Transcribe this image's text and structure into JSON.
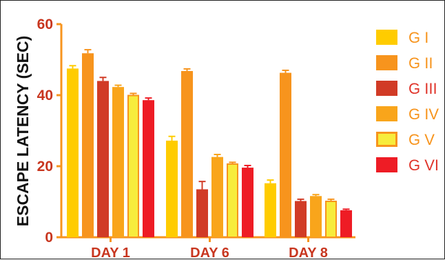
{
  "chart_data": {
    "type": "bar",
    "title": "",
    "xlabel": "",
    "ylabel": "ESCAPE LATENCY (SEC)",
    "ylim": [
      0,
      60
    ],
    "yticks": [
      0,
      20,
      40,
      60
    ],
    "categories": [
      "DAY 1",
      "DAY 6",
      "DAY 8"
    ],
    "legend_position": "right",
    "grid": false,
    "axis_color": "#f7941d",
    "tick_label_color": "#c8361f",
    "series": [
      {
        "name": "G I",
        "color": "#ffcc00",
        "border": "#ffcc00",
        "values": [
          47.5,
          27.2,
          15.2
        ],
        "errors": [
          0.8,
          1.2,
          0.9
        ]
      },
      {
        "name": "G II",
        "color": "#f7941d",
        "border": "#f7941d",
        "values": [
          51.8,
          46.8,
          46.3
        ],
        "errors": [
          1.0,
          0.6,
          0.7
        ]
      },
      {
        "name": "G III",
        "color": "#d13b26",
        "border": "#d13b26",
        "values": [
          44.0,
          13.5,
          10.2
        ],
        "errors": [
          1.0,
          2.2,
          0.5
        ]
      },
      {
        "name": "G IV",
        "color": "#f9a51b",
        "border": "#f9a51b",
        "values": [
          42.3,
          22.6,
          11.6
        ],
        "errors": [
          0.5,
          0.7,
          0.4
        ]
      },
      {
        "name": "G V",
        "color": "#f7ec3c",
        "border": "#f7941d",
        "values": [
          39.9,
          20.6,
          10.1
        ],
        "errors": [
          0.6,
          0.5,
          0.6
        ]
      },
      {
        "name": "G VI",
        "color": "#ee1c25",
        "border": "#ee1c25",
        "values": [
          38.6,
          19.6,
          7.6
        ],
        "errors": [
          0.6,
          0.6,
          0.3
        ]
      }
    ]
  }
}
